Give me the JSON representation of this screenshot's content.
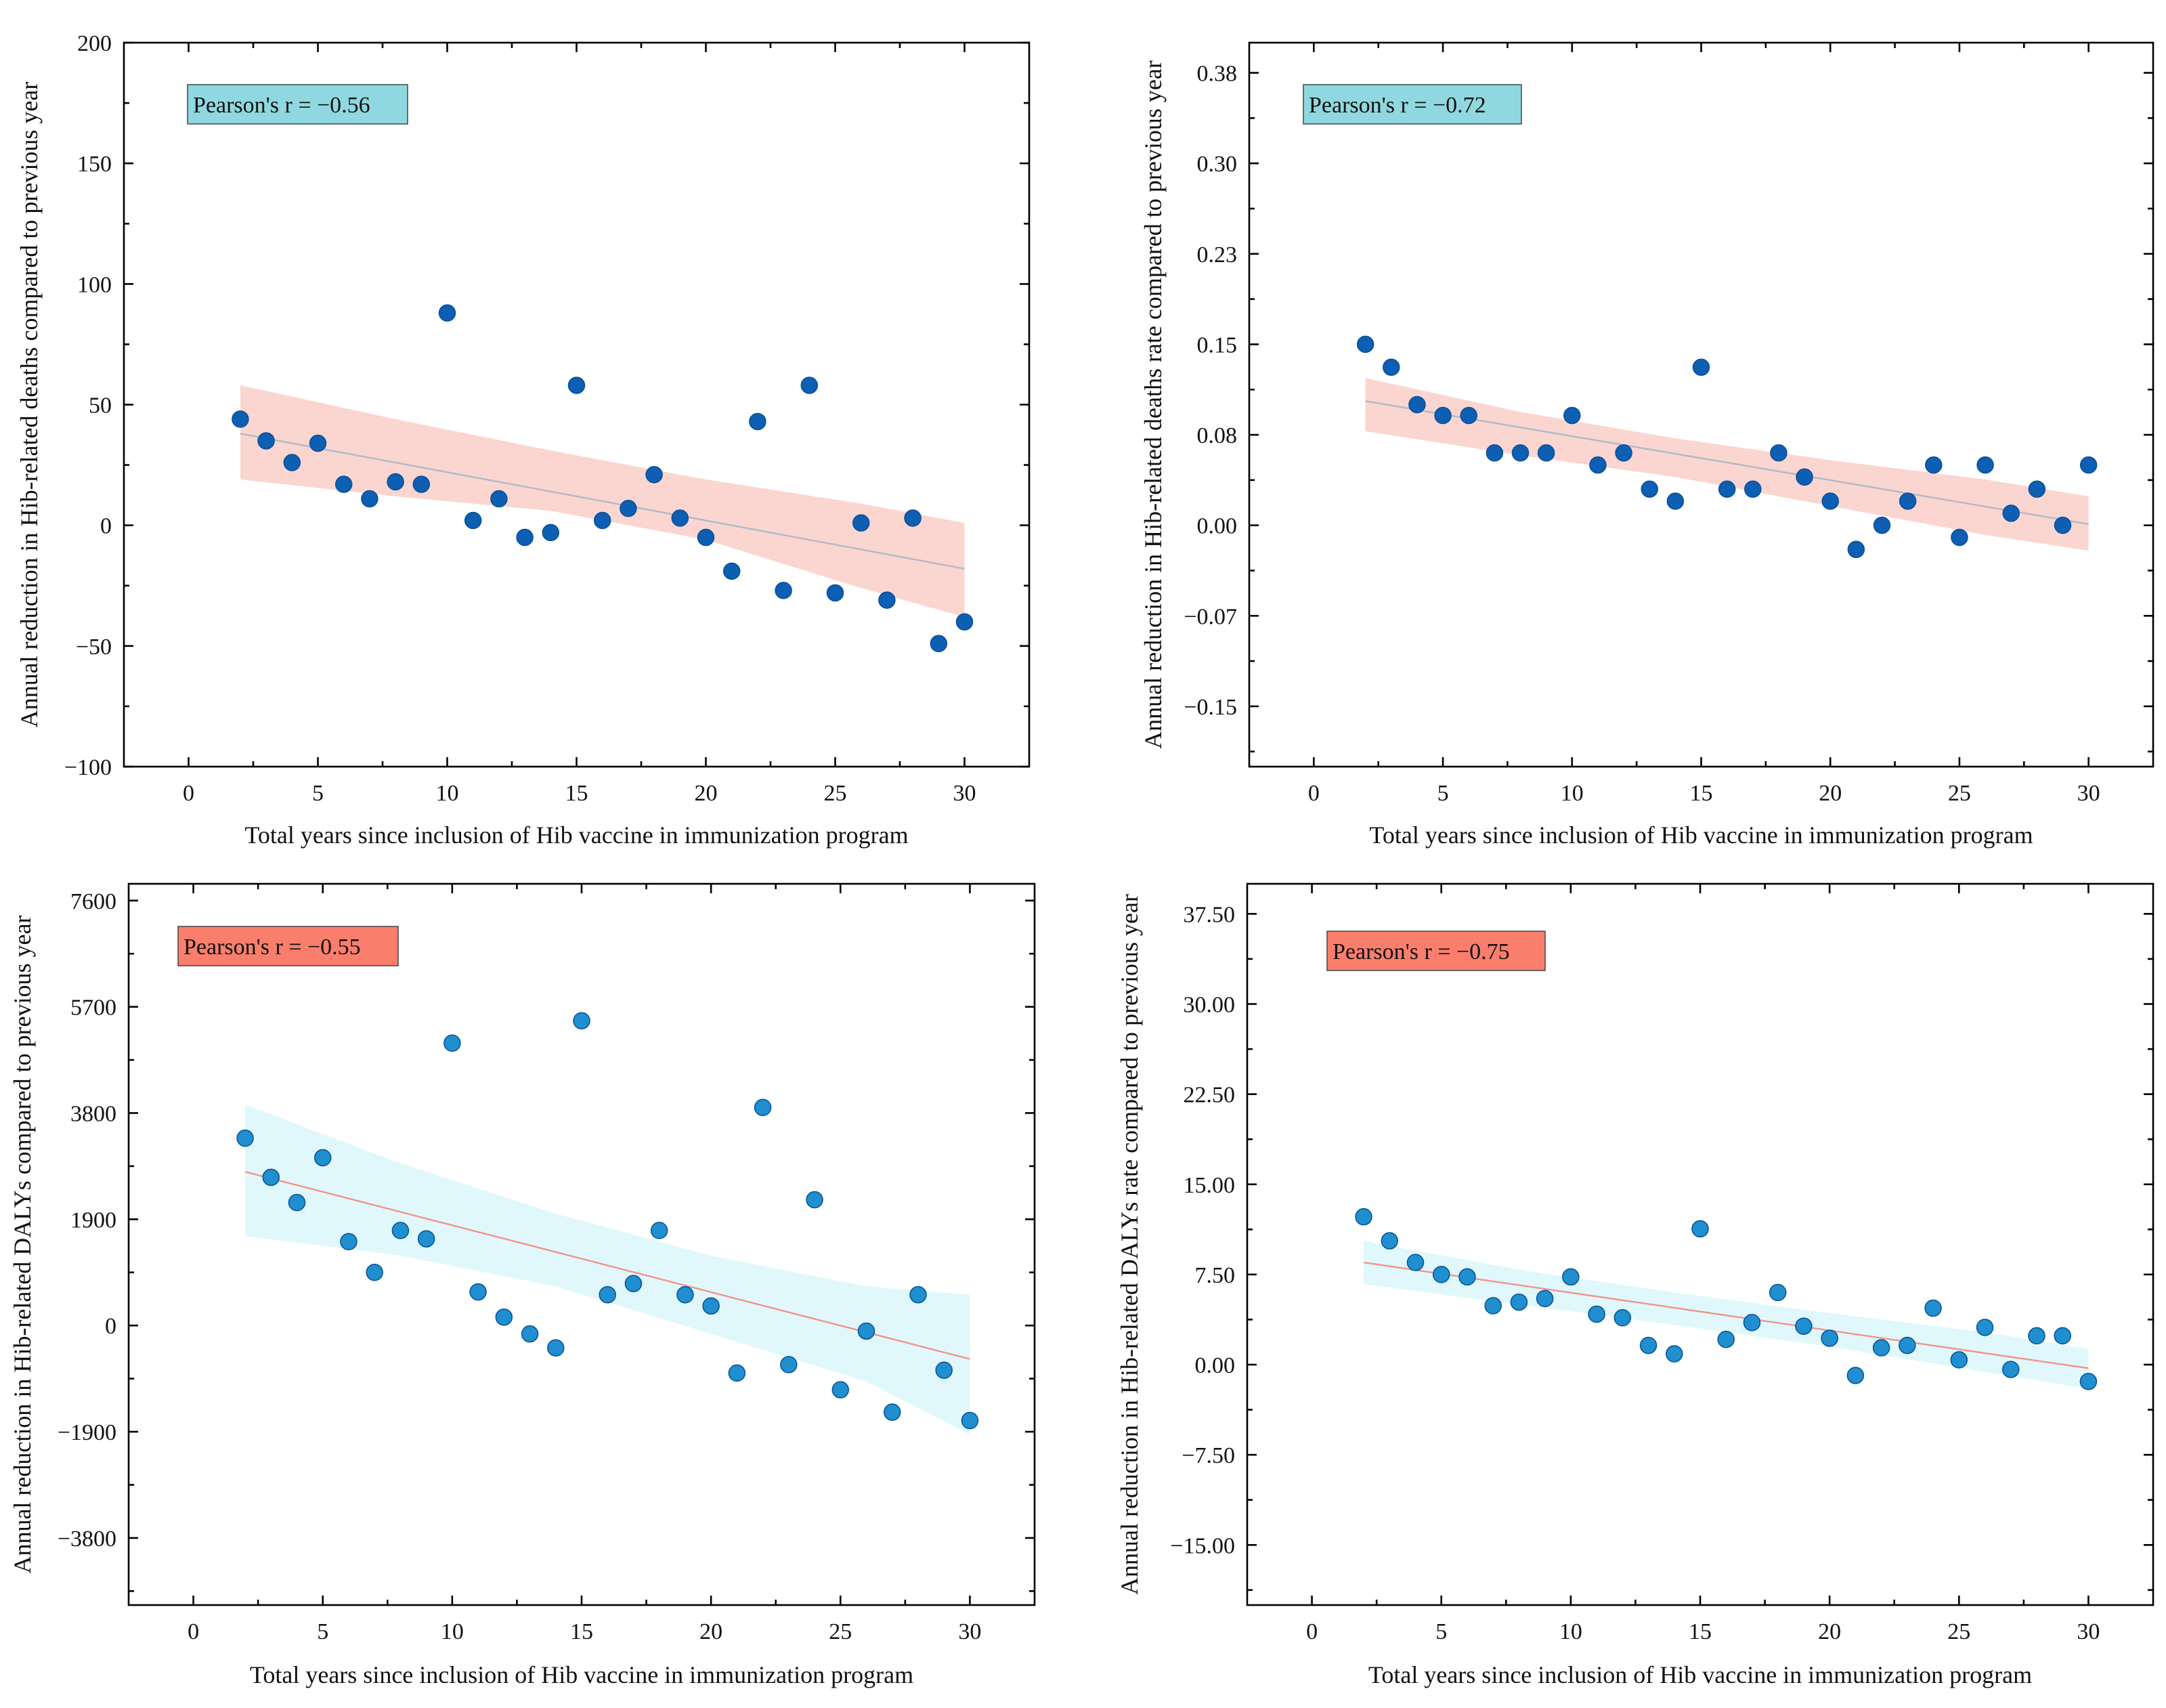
{
  "chart_data": [
    {
      "type": "scatter",
      "panel": "top-left",
      "title": "",
      "xlabel": "Total years since inclusion of Hib vaccine in immunization program",
      "ylabel": "Annual reduction in Hib-related deaths compared to previous year",
      "xlim": [
        -2.5,
        32.5
      ],
      "ylim": [
        -100,
        200
      ],
      "xticks": [
        0,
        5,
        10,
        15,
        20,
        25,
        30
      ],
      "yticks": [
        -100,
        -50,
        0,
        50,
        100,
        150,
        200
      ],
      "ytick_labels": [
        "−100",
        "−50",
        "0",
        "50",
        "100",
        "150",
        "200"
      ],
      "annotation": "Pearson's r = −0.56",
      "annotation_color": "#8fd8df",
      "point_color": "#0d5fb4",
      "band_color": "#fbd5cf",
      "fit_line_color": "#b0bac9",
      "x": [
        2,
        3,
        4,
        5,
        6,
        7,
        8,
        9,
        10,
        11,
        12,
        13,
        14,
        15,
        16,
        17,
        18,
        19,
        20,
        21,
        22,
        23,
        24,
        25,
        26,
        27,
        28,
        29,
        30
      ],
      "y": [
        44,
        35,
        26,
        34,
        17,
        11,
        18,
        17,
        88,
        2,
        11,
        -5,
        -3,
        58,
        2,
        7,
        21,
        3,
        -5,
        -19,
        43,
        -27,
        58,
        -28,
        1,
        -31,
        3,
        -49,
        -40
      ],
      "fit": {
        "x": [
          2,
          30
        ],
        "y": [
          38,
          -18
        ]
      },
      "band": {
        "x": [
          2,
          8,
          14,
          20,
          26,
          30
        ],
        "upper": [
          58,
          44,
          31,
          19,
          9,
          1
        ],
        "lower": [
          19,
          12,
          6,
          -6,
          -26,
          -38
        ]
      }
    },
    {
      "type": "scatter",
      "panel": "top-right",
      "title": "",
      "xlabel": "Total years since inclusion of Hib vaccine in immunization program",
      "ylabel": "Annual reduction in Hib-related deaths rate compared to previous year",
      "xlim": [
        -2.5,
        32.5
      ],
      "ylim": [
        -0.2,
        0.4
      ],
      "xticks": [
        0,
        5,
        10,
        15,
        20,
        25,
        30
      ],
      "yticks": [
        -0.15,
        -0.075,
        0,
        0.075,
        0.15,
        0.225,
        0.3,
        0.375
      ],
      "ytick_labels": [
        "−0.15",
        "−0.07",
        "0.00",
        "0.08",
        "0.15",
        "0.23",
        "0.30",
        "0.38"
      ],
      "annotation": "Pearson's r = −0.72",
      "annotation_color": "#8fd8df",
      "point_color": "#0d5fb4",
      "band_color": "#fbd5cf",
      "fit_line_color": "#b0bac9",
      "x": [
        2,
        3,
        4,
        5,
        6,
        7,
        8,
        9,
        10,
        11,
        12,
        13,
        14,
        15,
        16,
        17,
        18,
        19,
        20,
        21,
        22,
        23,
        24,
        25,
        26,
        27,
        28,
        29,
        30
      ],
      "y": [
        0.15,
        0.131,
        0.1,
        0.091,
        0.091,
        0.06,
        0.06,
        0.06,
        0.091,
        0.05,
        0.06,
        0.03,
        0.02,
        0.131,
        0.03,
        0.03,
        0.06,
        0.04,
        0.02,
        -0.02,
        0.0,
        0.02,
        0.05,
        -0.01,
        0.05,
        0.01,
        0.03,
        0.0,
        0.05
      ],
      "fit": {
        "x": [
          2,
          30
        ],
        "y": [
          0.103,
          0.001
        ]
      },
      "band": {
        "x": [
          2,
          8,
          14,
          20,
          26,
          30
        ],
        "upper": [
          0.122,
          0.094,
          0.072,
          0.054,
          0.038,
          0.024
        ],
        "lower": [
          0.078,
          0.058,
          0.04,
          0.016,
          -0.008,
          -0.021
        ]
      }
    },
    {
      "type": "scatter",
      "panel": "bottom-left",
      "title": "",
      "xlabel": "Total years since inclusion of Hib vaccine in immunization program",
      "ylabel": "Annual reduction in Hib-related DALYs compared to previous year",
      "xlim": [
        -2.5,
        32.5
      ],
      "ylim": [
        -5000,
        7900
      ],
      "xticks": [
        0,
        5,
        10,
        15,
        20,
        25,
        30
      ],
      "yticks": [
        -3800,
        -1900,
        0,
        1900,
        3800,
        5700,
        7600
      ],
      "ytick_labels": [
        "−3800",
        "−1900",
        "0",
        "1900",
        "3800",
        "5700",
        "7600"
      ],
      "annotation": "Pearson's r = −0.55",
      "annotation_color": "#fa7e6c",
      "point_color": "#1f8fcf",
      "band_color": "#e0f8fb",
      "fit_line_color": "#f0958a",
      "x": [
        2,
        3,
        4,
        5,
        6,
        7,
        8,
        9,
        10,
        11,
        12,
        13,
        14,
        15,
        16,
        17,
        18,
        19,
        20,
        21,
        22,
        23,
        24,
        25,
        26,
        27,
        28,
        29,
        30
      ],
      "y": [
        3350,
        2650,
        2200,
        3000,
        1500,
        950,
        1700,
        1550,
        5050,
        600,
        150,
        -150,
        -400,
        5450,
        550,
        750,
        1700,
        550,
        350,
        -850,
        3900,
        -700,
        2250,
        -1150,
        -100,
        -1550,
        550,
        -800,
        -1700
      ],
      "fit": {
        "x": [
          2,
          30
        ],
        "y": [
          2750,
          -600
        ]
      },
      "band": {
        "x": [
          2,
          8,
          14,
          20,
          26,
          30
        ],
        "upper": [
          3950,
          2900,
          2000,
          1250,
          700,
          550
        ],
        "lower": [
          1600,
          1250,
          700,
          -150,
          -1000,
          -1950
        ]
      }
    },
    {
      "type": "scatter",
      "panel": "bottom-right",
      "title": "",
      "xlabel": "Total years since inclusion of Hib vaccine in immunization program",
      "ylabel": "Annual reduction in Hib-related DALYs rate compared to previous year",
      "xlim": [
        -2.5,
        32.5
      ],
      "ylim": [
        -20,
        40
      ],
      "xticks": [
        0,
        5,
        10,
        15,
        20,
        25,
        30
      ],
      "yticks": [
        -15,
        -7.5,
        0,
        7.5,
        15,
        22.5,
        30,
        37.5
      ],
      "ytick_labels": [
        "−15.00",
        "−7.50",
        "0.00",
        "7.50",
        "15.00",
        "22.50",
        "30.00",
        "37.50"
      ],
      "annotation": "Pearson's r = −0.75",
      "annotation_color": "#fa7e6c",
      "point_color": "#1f8fcf",
      "band_color": "#e0f8fb",
      "fit_line_color": "#f0958a",
      "x": [
        2,
        3,
        4,
        5,
        6,
        7,
        8,
        9,
        10,
        11,
        12,
        13,
        14,
        15,
        16,
        17,
        18,
        19,
        20,
        21,
        22,
        23,
        24,
        25,
        26,
        27,
        28,
        29,
        30
      ],
      "y": [
        12.3,
        10.3,
        8.5,
        7.5,
        7.3,
        4.9,
        5.2,
        5.5,
        7.3,
        4.2,
        3.9,
        1.6,
        0.9,
        11.3,
        2.1,
        3.5,
        6.0,
        3.2,
        2.2,
        -0.9,
        1.4,
        1.6,
        4.7,
        0.4,
        3.1,
        -0.4,
        2.4,
        2.4,
        -1.4
      ],
      "fit": {
        "x": [
          2,
          30
        ],
        "y": [
          8.5,
          -0.3
        ]
      },
      "band": {
        "x": [
          2,
          8,
          14,
          20,
          26,
          30
        ],
        "upper": [
          10.3,
          7.9,
          6.0,
          4.3,
          2.7,
          1.3
        ],
        "lower": [
          6.7,
          5.0,
          3.3,
          1.5,
          -0.6,
          -2.0
        ]
      }
    }
  ]
}
